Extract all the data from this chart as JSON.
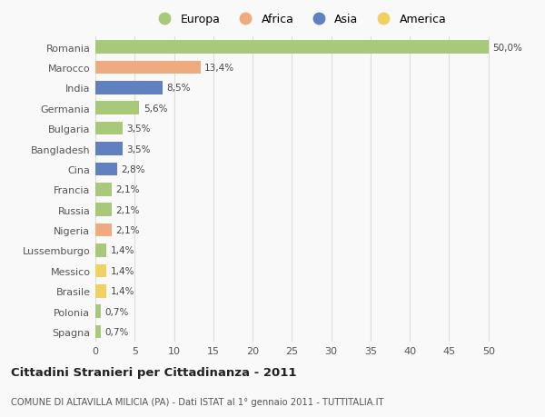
{
  "countries": [
    "Romania",
    "Marocco",
    "India",
    "Germania",
    "Bulgaria",
    "Bangladesh",
    "Cina",
    "Francia",
    "Russia",
    "Nigeria",
    "Lussemburgo",
    "Messico",
    "Brasile",
    "Polonia",
    "Spagna"
  ],
  "values": [
    50.0,
    13.4,
    8.5,
    5.6,
    3.5,
    3.5,
    2.8,
    2.1,
    2.1,
    2.1,
    1.4,
    1.4,
    1.4,
    0.7,
    0.7
  ],
  "labels": [
    "50,0%",
    "13,4%",
    "8,5%",
    "5,6%",
    "3,5%",
    "3,5%",
    "2,8%",
    "2,1%",
    "2,1%",
    "2,1%",
    "1,4%",
    "1,4%",
    "1,4%",
    "0,7%",
    "0,7%"
  ],
  "continents": [
    "Europa",
    "Africa",
    "Asia",
    "Europa",
    "Europa",
    "Asia",
    "Asia",
    "Europa",
    "Europa",
    "Africa",
    "Europa",
    "America",
    "America",
    "Europa",
    "Europa"
  ],
  "colors": {
    "Europa": "#a8c87a",
    "Africa": "#f0aa80",
    "Asia": "#6080c0",
    "America": "#f0d060"
  },
  "legend_order": [
    "Europa",
    "Africa",
    "Asia",
    "America"
  ],
  "title_main": "Cittadini Stranieri per Cittadinanza - 2011",
  "title_sub": "COMUNE DI ALTAVILLA MILICIA (PA) - Dati ISTAT al 1° gennaio 2011 - TUTTITALIA.IT",
  "xlim": [
    0,
    52
  ],
  "xticks": [
    0,
    5,
    10,
    15,
    20,
    25,
    30,
    35,
    40,
    45,
    50
  ],
  "background_color": "#f9f9f9",
  "grid_color": "#dddddd",
  "bar_height": 0.65
}
